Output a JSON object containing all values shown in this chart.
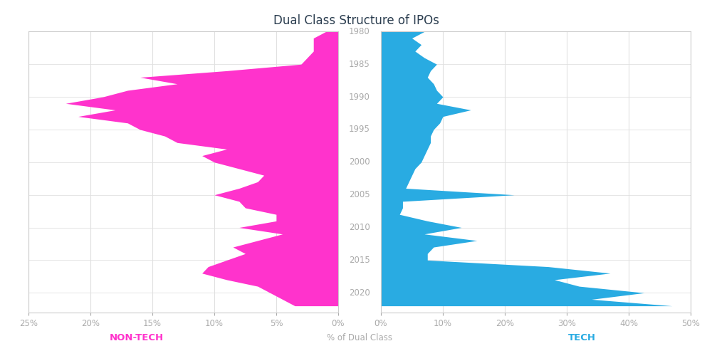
{
  "title": "Dual Class Structure of IPOs",
  "xlabel": "% of Dual Class",
  "ylabel_left": "NON-TECH",
  "ylabel_right": "TECH",
  "label_color_left": "#FF33CC",
  "label_color_right": "#29ABE2",
  "background_color": "#FFFFFF",
  "border_color": "#CCCCCC",
  "color_left": "#FF33CC",
  "color_right": "#29ABE2",
  "years": [
    1980,
    1981,
    1982,
    1983,
    1984,
    1985,
    1986,
    1987,
    1988,
    1989,
    1990,
    1991,
    1992,
    1993,
    1994,
    1995,
    1996,
    1997,
    1998,
    1999,
    2000,
    2001,
    2002,
    2003,
    2004,
    2005,
    2006,
    2007,
    2008,
    2009,
    2010,
    2011,
    2012,
    2013,
    2014,
    2015,
    2016,
    2017,
    2018,
    2019,
    2020,
    2021,
    2022
  ],
  "nontech": [
    1.0,
    2.0,
    2.0,
    2.0,
    2.5,
    3.0,
    9.0,
    16.0,
    13.0,
    17.0,
    19.0,
    22.0,
    18.0,
    21.0,
    17.0,
    16.0,
    14.0,
    13.0,
    9.0,
    11.0,
    10.0,
    8.0,
    6.0,
    6.5,
    8.0,
    10.0,
    8.0,
    7.5,
    5.0,
    5.0,
    8.0,
    4.5,
    6.5,
    8.5,
    7.5,
    9.0,
    10.5,
    11.0,
    9.0,
    6.5,
    5.5,
    4.5,
    3.5
  ],
  "tech": [
    7.0,
    5.0,
    6.5,
    5.5,
    7.0,
    9.0,
    8.0,
    7.5,
    8.5,
    9.0,
    10.0,
    9.0,
    14.5,
    10.0,
    9.5,
    8.5,
    8.0,
    8.0,
    7.5,
    7.0,
    6.5,
    5.5,
    5.0,
    4.5,
    4.0,
    21.5,
    3.5,
    3.5,
    3.0,
    7.5,
    13.0,
    7.0,
    15.5,
    8.5,
    7.5,
    7.5,
    27.0,
    37.0,
    28.0,
    32.0,
    42.5,
    34.0,
    47.0
  ],
  "xlim_left": 25,
  "xlim_right": 50,
  "x_ticks_left": [
    25,
    20,
    15,
    10,
    5,
    0
  ],
  "x_ticks_right": [
    0,
    10,
    20,
    30,
    40,
    50
  ],
  "y_ticks": [
    1980,
    1985,
    1990,
    1995,
    2000,
    2005,
    2010,
    2015,
    2020
  ],
  "title_color": "#2C3E50",
  "tick_color": "#AAAAAA",
  "grid_color": "#E0E0E0"
}
